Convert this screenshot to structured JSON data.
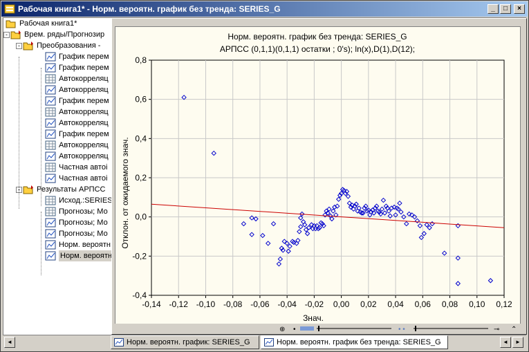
{
  "window": {
    "title": "Рабочая книга1* - Норм. вероятн. график без тренда: SERIES_G",
    "minimize": "_",
    "maximize": "□",
    "close": "×"
  },
  "tree": {
    "root": "Рабочая книга1*",
    "items": [
      {
        "label": "Врем. ряды/Прогнозир",
        "level": 1,
        "type": "folder",
        "expander": "-"
      },
      {
        "label": "Преобразования -",
        "level": 2,
        "type": "folder",
        "expander": "-"
      },
      {
        "label": "График перем",
        "level": 3,
        "type": "graph"
      },
      {
        "label": "График перем",
        "level": 3,
        "type": "graph"
      },
      {
        "label": "Автокорреляц",
        "level": 3,
        "type": "sheet"
      },
      {
        "label": "Автокорреляц",
        "level": 3,
        "type": "graph"
      },
      {
        "label": "График перем",
        "level": 3,
        "type": "graph"
      },
      {
        "label": "Автокорреляц",
        "level": 3,
        "type": "sheet"
      },
      {
        "label": "Автокорреляц",
        "level": 3,
        "type": "graph"
      },
      {
        "label": "График перем",
        "level": 3,
        "type": "graph"
      },
      {
        "label": "Автокорреляц",
        "level": 3,
        "type": "sheet"
      },
      {
        "label": "Автокорреляц",
        "level": 3,
        "type": "graph"
      },
      {
        "label": "Частная автоі",
        "level": 3,
        "type": "sheet"
      },
      {
        "label": "Частная автоі",
        "level": 3,
        "type": "graph"
      },
      {
        "label": "Результаты АРПСС",
        "level": 2,
        "type": "folder",
        "expander": "-"
      },
      {
        "label": "Исход.:SERIES",
        "level": 3,
        "type": "sheet"
      },
      {
        "label": "Прогнозы; Мо",
        "level": 3,
        "type": "sheet"
      },
      {
        "label": "Прогнозы; Мо",
        "level": 3,
        "type": "graph"
      },
      {
        "label": "Прогнозы; Мо",
        "level": 3,
        "type": "graph"
      },
      {
        "label": "Норм. вероятн",
        "level": 3,
        "type": "graph"
      },
      {
        "label": "Норм. вероятн",
        "level": 3,
        "type": "graph",
        "selected": true
      }
    ]
  },
  "tabs": [
    {
      "label": "Норм. вероятн. график:  SERIES_G",
      "active": false
    },
    {
      "label": "Норм. вероятн. график без тренда: SERIES_G",
      "active": true
    }
  ],
  "scroll": {
    "left": "◄",
    "right": "►"
  },
  "chart_data": {
    "type": "scatter",
    "title": "Норм. вероятн. график без тренда: SERIES_G",
    "subtitle": "АРПСС (0,1,1)(0,1,1) остатки  ; 0's); ln(x),D(1),D(12);",
    "xlabel": "Знач.",
    "ylabel": "Отклон. от ожидаемого знач.",
    "xlim": [
      -0.14,
      0.12
    ],
    "ylim": [
      -0.4,
      0.8
    ],
    "xticks": [
      "-0,14",
      "-0,12",
      "-0,10",
      "-0,08",
      "-0,06",
      "-0,04",
      "-0,02",
      "0,00",
      "0,02",
      "0,04",
      "0,06",
      "0,08",
      "0,10",
      "0,12"
    ],
    "yticks": [
      "-0,4",
      "-0,2",
      "0,0",
      "0,2",
      "0,4",
      "0,6",
      "0,8"
    ],
    "grid": true,
    "point_color": "#0000cc",
    "line_color": "#cc0000",
    "trend_line": [
      [
        -0.14,
        0.065
      ],
      [
        0.12,
        -0.055
      ]
    ],
    "points": [
      [
        -0.116,
        0.61
      ],
      [
        -0.094,
        0.325
      ],
      [
        -0.072,
        -0.035
      ],
      [
        -0.066,
        -0.09
      ],
      [
        -0.066,
        -0.005
      ],
      [
        -0.063,
        -0.01
      ],
      [
        -0.058,
        -0.095
      ],
      [
        -0.054,
        -0.135
      ],
      [
        -0.05,
        -0.035
      ],
      [
        -0.046,
        -0.24
      ],
      [
        -0.045,
        -0.215
      ],
      [
        -0.044,
        -0.16
      ],
      [
        -0.043,
        -0.17
      ],
      [
        -0.042,
        -0.125
      ],
      [
        -0.04,
        -0.135
      ],
      [
        -0.039,
        -0.175
      ],
      [
        -0.038,
        -0.15
      ],
      [
        -0.036,
        -0.125
      ],
      [
        -0.035,
        -0.13
      ],
      [
        -0.033,
        -0.135
      ],
      [
        -0.032,
        -0.12
      ],
      [
        -0.031,
        -0.075
      ],
      [
        -0.03,
        -0.05
      ],
      [
        -0.03,
        -0.005
      ],
      [
        -0.029,
        0.015
      ],
      [
        -0.028,
        -0.025
      ],
      [
        -0.027,
        -0.04
      ],
      [
        -0.026,
        -0.065
      ],
      [
        -0.025,
        -0.085
      ],
      [
        -0.024,
        -0.055
      ],
      [
        -0.022,
        -0.04
      ],
      [
        -0.021,
        -0.06
      ],
      [
        -0.02,
        -0.045
      ],
      [
        -0.019,
        -0.06
      ],
      [
        -0.018,
        -0.045
      ],
      [
        -0.017,
        -0.06
      ],
      [
        -0.016,
        -0.055
      ],
      [
        -0.015,
        -0.03
      ],
      [
        -0.014,
        -0.035
      ],
      [
        -0.013,
        -0.045
      ],
      [
        -0.012,
        0.01
      ],
      [
        -0.011,
        0.03
      ],
      [
        -0.01,
        0.02
      ],
      [
        -0.009,
        0.04
      ],
      [
        -0.008,
        0.005
      ],
      [
        -0.007,
        -0.01
      ],
      [
        -0.006,
        0.03
      ],
      [
        -0.005,
        0.05
      ],
      [
        -0.004,
        0.01
      ],
      [
        -0.003,
        0.055
      ],
      [
        -0.002,
        0.09
      ],
      [
        -0.001,
        0.11
      ],
      [
        0.0,
        0.12
      ],
      [
        0.001,
        0.14
      ],
      [
        0.002,
        0.135
      ],
      [
        0.003,
        0.12
      ],
      [
        0.004,
        0.13
      ],
      [
        0.005,
        0.105
      ],
      [
        0.006,
        0.07
      ],
      [
        0.007,
        0.05
      ],
      [
        0.008,
        0.06
      ],
      [
        0.009,
        0.04
      ],
      [
        0.01,
        0.055
      ],
      [
        0.011,
        0.065
      ],
      [
        0.012,
        0.03
      ],
      [
        0.013,
        0.045
      ],
      [
        0.014,
        0.025
      ],
      [
        0.015,
        0.02
      ],
      [
        0.016,
        0.02
      ],
      [
        0.017,
        0.045
      ],
      [
        0.018,
        0.055
      ],
      [
        0.019,
        0.03
      ],
      [
        0.02,
        0.035
      ],
      [
        0.021,
        0.01
      ],
      [
        0.022,
        0.025
      ],
      [
        0.023,
        0.035
      ],
      [
        0.024,
        0.02
      ],
      [
        0.025,
        0.045
      ],
      [
        0.026,
        0.055
      ],
      [
        0.027,
        0.03
      ],
      [
        0.028,
        0.025
      ],
      [
        0.029,
        0.015
      ],
      [
        0.03,
        0.04
      ],
      [
        0.031,
        0.085
      ],
      [
        0.032,
        0.02
      ],
      [
        0.033,
        0.055
      ],
      [
        0.034,
        0.045
      ],
      [
        0.035,
        0.03
      ],
      [
        0.036,
        0.005
      ],
      [
        0.037,
        0.045
      ],
      [
        0.039,
        0.05
      ],
      [
        0.04,
        0.01
      ],
      [
        0.041,
        0.045
      ],
      [
        0.042,
        0.04
      ],
      [
        0.043,
        0.07
      ],
      [
        0.044,
        0.025
      ],
      [
        0.046,
        0.0
      ],
      [
        0.048,
        -0.035
      ],
      [
        0.05,
        0.015
      ],
      [
        0.052,
        0.01
      ],
      [
        0.054,
        0.0
      ],
      [
        0.056,
        -0.02
      ],
      [
        0.058,
        -0.045
      ],
      [
        0.059,
        -0.105
      ],
      [
        0.061,
        -0.085
      ],
      [
        0.063,
        -0.04
      ],
      [
        0.065,
        -0.055
      ],
      [
        0.067,
        -0.035
      ],
      [
        0.076,
        -0.185
      ],
      [
        0.086,
        -0.045
      ],
      [
        0.086,
        -0.21
      ],
      [
        0.086,
        -0.34
      ],
      [
        0.11,
        -0.325
      ]
    ]
  },
  "colors": {
    "titlebar_start": "#0a246a",
    "titlebar_end": "#a6caf0",
    "face": "#d4d0c8",
    "plot_bg": "#fefcf0"
  }
}
